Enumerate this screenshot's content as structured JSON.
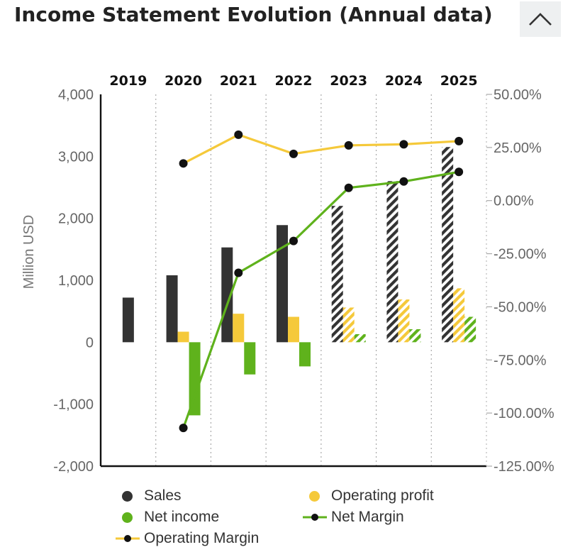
{
  "header": {
    "title": "Income Statement Evolution (Annual data)"
  },
  "colors": {
    "sales": "#333333",
    "operating_profit": "#f5c93a",
    "net_income": "#5fb21c",
    "operating_margin_line": "#f5c93a",
    "net_margin_line": "#5fb21c",
    "marker": "#111111",
    "button_bg": "#eef0f1"
  },
  "icons": {
    "collapse": "chevron-up-icon"
  },
  "legend": [
    {
      "label": "Sales"
    },
    {
      "label": "Operating profit"
    },
    {
      "label": "Net income"
    },
    {
      "label": "Net Margin"
    },
    {
      "label": "Operating Margin"
    }
  ],
  "chart_data": {
    "type": "bar",
    "categories": [
      "2019",
      "2020",
      "2021",
      "2022",
      "2023",
      "2024",
      "2025"
    ],
    "estimated_from": "2023",
    "ylabel": "Million USD",
    "ylim": [
      -2000,
      4000
    ],
    "yticks": [
      4000,
      3000,
      2000,
      1000,
      0,
      -1000,
      -2000
    ],
    "ytick_labels": [
      "4,000",
      "3,000",
      "2,000",
      "1,000",
      "0",
      "-1,000",
      "-2,000"
    ],
    "y2lim": [
      -125,
      50
    ],
    "y2ticks": [
      50,
      25,
      0,
      -25,
      -50,
      -75,
      -100,
      -125
    ],
    "y2tick_labels": [
      "50.00%",
      "25.00%",
      "0.00%",
      "-25.00%",
      "-50.00%",
      "-75.00%",
      "-100.00%",
      "-125.00%"
    ],
    "grid": "vertical dotted",
    "legend_position": "bottom",
    "series": [
      {
        "name": "Sales",
        "kind": "bar",
        "values": [
          720,
          1080,
          1530,
          1890,
          2200,
          2600,
          3150
        ]
      },
      {
        "name": "Operating profit",
        "kind": "bar",
        "values": null,
        "values_list": [
          null,
          170,
          460,
          410,
          560,
          690,
          870
        ]
      },
      {
        "name": "Net income",
        "kind": "bar",
        "values_list": [
          null,
          -1180,
          -520,
          -390,
          130,
          210,
          410
        ]
      },
      {
        "name": "Net Margin",
        "kind": "line",
        "axis": "right",
        "values_list": [
          null,
          -107,
          -34,
          -19,
          6,
          9,
          13.5
        ]
      },
      {
        "name": "Operating Margin",
        "kind": "line",
        "axis": "right",
        "values_list": [
          null,
          17.5,
          31,
          22,
          26,
          26.5,
          28
        ]
      }
    ]
  }
}
